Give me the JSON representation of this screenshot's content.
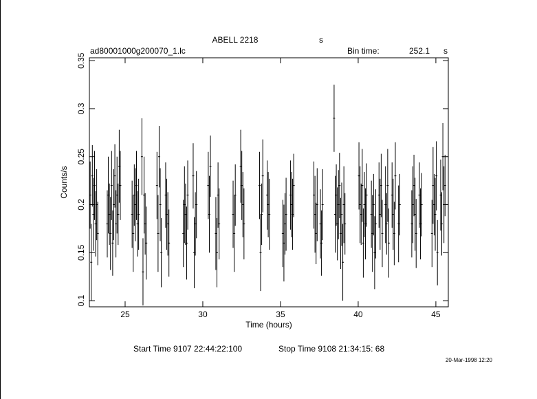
{
  "chart_data": {
    "type": "errorbar",
    "title": "ABELL 2218",
    "title_unit": "s",
    "subtitle": "ad80001000g200070_1.lc",
    "bin_time_label": "Bin time:",
    "bin_time": "252.1",
    "bin_time_unit": "s",
    "xlabel": "Time (hours)",
    "ylabel": "Counts/s",
    "start_time": "Start Time  9107 22:44:22:100",
    "stop_time": "Stop Time  9108 21:34:15: 68",
    "date": "20-Mar-1998 12:20",
    "xlim": [
      22.7,
      45.8
    ],
    "ylim": [
      0.0936,
      0.353
    ],
    "xticks": [
      25,
      30,
      35,
      40,
      45
    ],
    "yticks": [
      0.1,
      0.15,
      0.2,
      0.25,
      0.3,
      0.35
    ],
    "color": "#000000",
    "x": [
      22.75,
      22.82,
      22.89,
      22.96,
      23.03,
      23.1,
      23.17,
      23.24,
      23.85,
      23.92,
      23.99,
      24.06,
      24.13,
      24.2,
      24.27,
      24.34,
      24.41,
      24.48,
      24.55,
      24.62,
      24.69,
      25.45,
      25.52,
      25.59,
      25.66,
      25.73,
      25.8,
      25.87,
      26.08,
      26.15,
      26.22,
      26.29,
      26.36,
      27.05,
      27.12,
      27.19,
      27.26,
      27.33,
      27.61,
      27.68,
      27.75,
      27.82,
      28.75,
      28.82,
      28.89,
      28.96,
      29.03,
      29.38,
      29.45,
      29.52,
      29.59,
      30.35,
      30.42,
      30.49,
      30.84,
      30.91,
      30.98,
      31.05,
      31.95,
      32.02,
      32.09,
      32.44,
      32.51,
      32.58,
      32.65,
      33.65,
      33.72,
      33.79,
      33.86,
      34.14,
      34.21,
      34.28,
      35.15,
      35.22,
      35.29,
      35.36,
      35.64,
      35.71,
      35.78,
      35.85,
      37.15,
      37.22,
      37.29,
      37.36,
      37.57,
      37.64,
      37.71,
      38.45,
      38.52,
      38.59,
      38.66,
      38.73,
      38.8,
      38.87,
      38.94,
      39.01,
      39.08,
      39.15,
      40.05,
      40.12,
      40.19,
      40.26,
      40.33,
      40.4,
      40.47,
      40.54,
      40.85,
      40.92,
      40.99,
      41.06,
      41.13,
      41.34,
      41.41,
      41.48,
      41.55,
      41.76,
      41.83,
      41.9,
      41.97,
      42.18,
      42.25,
      42.32,
      42.39,
      42.6,
      42.67,
      43.45,
      43.52,
      43.59,
      43.66,
      43.73,
      43.94,
      44.01,
      44.08,
      44.75,
      44.82,
      44.89,
      44.96,
      45.03,
      45.1,
      45.31,
      45.38,
      45.45,
      45.52,
      45.59
    ],
    "values": [
      0.21,
      0.14,
      0.23,
      0.19,
      0.22,
      0.18,
      0.2,
      0.17,
      0.18,
      0.21,
      0.19,
      0.17,
      0.22,
      0.16,
      0.2,
      0.23,
      0.18,
      0.21,
      0.19,
      0.24,
      0.22,
      0.19,
      0.17,
      0.21,
      0.2,
      0.22,
      0.18,
      0.19,
      0.25,
      0.13,
      0.21,
      0.18,
      0.16,
      0.22,
      0.17,
      0.25,
      0.2,
      0.15,
      0.21,
      0.19,
      0.18,
      0.16,
      0.17,
      0.2,
      0.19,
      0.16,
      0.21,
      0.23,
      0.15,
      0.18,
      0.2,
      0.22,
      0.19,
      0.24,
      0.17,
      0.15,
      0.21,
      0.18,
      0.19,
      0.17,
      0.21,
      0.24,
      0.22,
      0.2,
      0.18,
      0.22,
      0.15,
      0.19,
      0.23,
      0.21,
      0.2,
      0.19,
      0.17,
      0.16,
      0.18,
      0.19,
      0.21,
      0.2,
      0.19,
      0.22,
      0.21,
      0.19,
      0.17,
      0.2,
      0.18,
      0.16,
      0.2,
      0.29,
      0.19,
      0.21,
      0.18,
      0.2,
      0.22,
      0.17,
      0.19,
      0.14,
      0.2,
      0.18,
      0.23,
      0.2,
      0.19,
      0.22,
      0.16,
      0.2,
      0.18,
      0.21,
      0.19,
      0.17,
      0.2,
      0.15,
      0.18,
      0.21,
      0.19,
      0.22,
      0.17,
      0.2,
      0.18,
      0.22,
      0.16,
      0.21,
      0.19,
      0.17,
      0.23,
      0.18,
      0.2,
      0.18,
      0.2,
      0.22,
      0.19,
      0.17,
      0.21,
      0.18,
      0.2,
      0.17,
      0.22,
      0.2,
      0.19,
      0.23,
      0.15,
      0.21,
      0.18,
      0.25,
      0.2,
      0.22
    ],
    "errors": [
      0.035,
      0.04,
      0.032,
      0.038,
      0.036,
      0.034,
      0.037,
      0.033,
      0.035,
      0.04,
      0.032,
      0.038,
      0.036,
      0.034,
      0.037,
      0.033,
      0.035,
      0.04,
      0.032,
      0.038,
      0.036,
      0.035,
      0.04,
      0.032,
      0.038,
      0.036,
      0.034,
      0.037,
      0.04,
      0.035,
      0.04,
      0.032,
      0.038,
      0.035,
      0.04,
      0.032,
      0.038,
      0.036,
      0.034,
      0.037,
      0.033,
      0.035,
      0.035,
      0.04,
      0.032,
      0.038,
      0.036,
      0.034,
      0.037,
      0.033,
      0.035,
      0.035,
      0.04,
      0.032,
      0.038,
      0.036,
      0.034,
      0.037,
      0.035,
      0.04,
      0.032,
      0.038,
      0.036,
      0.034,
      0.037,
      0.035,
      0.04,
      0.032,
      0.038,
      0.036,
      0.034,
      0.037,
      0.035,
      0.04,
      0.032,
      0.038,
      0.036,
      0.034,
      0.037,
      0.033,
      0.035,
      0.04,
      0.032,
      0.038,
      0.036,
      0.034,
      0.037,
      0.035,
      0.04,
      0.032,
      0.038,
      0.036,
      0.034,
      0.037,
      0.033,
      0.04,
      0.04,
      0.032,
      0.035,
      0.04,
      0.032,
      0.038,
      0.036,
      0.034,
      0.037,
      0.033,
      0.035,
      0.04,
      0.032,
      0.038,
      0.036,
      0.034,
      0.037,
      0.033,
      0.035,
      0.04,
      0.032,
      0.038,
      0.036,
      0.034,
      0.037,
      0.033,
      0.035,
      0.04,
      0.032,
      0.035,
      0.04,
      0.032,
      0.038,
      0.036,
      0.034,
      0.037,
      0.033,
      0.035,
      0.04,
      0.032,
      0.038,
      0.036,
      0.034,
      0.037,
      0.033,
      0.035,
      0.04,
      0.032
    ]
  }
}
